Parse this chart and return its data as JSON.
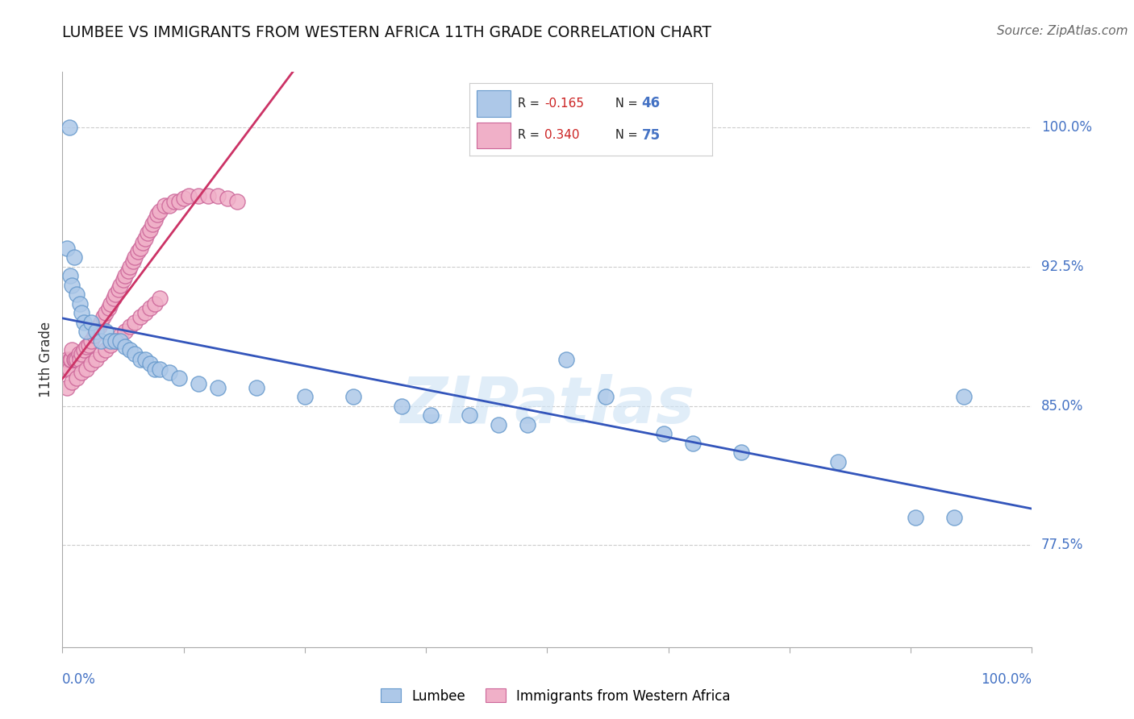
{
  "title": "LUMBEE VS IMMIGRANTS FROM WESTERN AFRICA 11TH GRADE CORRELATION CHART",
  "source": "Source: ZipAtlas.com",
  "ylabel": "11th Grade",
  "watermark": "ZIPatlas",
  "lumbee_label": "Lumbee",
  "africa_label": "Immigrants from Western Africa",
  "lumbee_r_text": "R = ",
  "lumbee_r_val": "-0.165",
  "lumbee_n_text": "N = ",
  "lumbee_n_val": "46",
  "africa_r_text": "R = ",
  "africa_r_val": "0.340",
  "africa_n_text": "N = ",
  "africa_n_val": "75",
  "xlim": [
    0.0,
    1.0
  ],
  "ylim": [
    0.72,
    1.03
  ],
  "yticks": [
    0.775,
    0.85,
    0.925,
    1.0
  ],
  "ytick_labels": [
    "77.5%",
    "85.0%",
    "92.5%",
    "100.0%"
  ],
  "lumbee_color": "#adc8e8",
  "lumbee_edge": "#6699cc",
  "africa_color": "#f0b0c8",
  "africa_edge": "#cc6699",
  "blue_line_color": "#3355bb",
  "pink_line_color": "#cc3366",
  "grid_color": "#cccccc",
  "axis_color": "#aaaaaa",
  "title_color": "#111111",
  "source_color": "#666666",
  "right_label_color": "#4472c4",
  "lumbee_x": [
    0.005,
    0.008,
    0.01,
    0.012,
    0.015,
    0.018,
    0.02,
    0.022,
    0.025,
    0.03,
    0.035,
    0.04,
    0.045,
    0.05,
    0.055,
    0.06,
    0.065,
    0.07,
    0.075,
    0.08,
    0.085,
    0.09,
    0.095,
    0.1,
    0.11,
    0.12,
    0.14,
    0.16,
    0.2,
    0.25,
    0.3,
    0.35,
    0.38,
    0.42,
    0.45,
    0.48,
    0.52,
    0.56,
    0.62,
    0.65,
    0.7,
    0.8,
    0.88,
    0.92,
    0.007,
    0.93
  ],
  "lumbee_y": [
    0.935,
    0.92,
    0.915,
    0.93,
    0.91,
    0.905,
    0.9,
    0.895,
    0.89,
    0.895,
    0.89,
    0.885,
    0.89,
    0.885,
    0.885,
    0.885,
    0.882,
    0.88,
    0.878,
    0.875,
    0.875,
    0.873,
    0.87,
    0.87,
    0.868,
    0.865,
    0.862,
    0.86,
    0.86,
    0.855,
    0.855,
    0.85,
    0.845,
    0.845,
    0.84,
    0.84,
    0.875,
    0.855,
    0.835,
    0.83,
    0.825,
    0.82,
    0.79,
    0.79,
    1.0,
    0.855
  ],
  "africa_x": [
    0.003,
    0.005,
    0.007,
    0.008,
    0.009,
    0.01,
    0.012,
    0.013,
    0.015,
    0.017,
    0.018,
    0.02,
    0.022,
    0.025,
    0.027,
    0.03,
    0.033,
    0.035,
    0.038,
    0.04,
    0.042,
    0.045,
    0.048,
    0.05,
    0.053,
    0.055,
    0.058,
    0.06,
    0.063,
    0.065,
    0.068,
    0.07,
    0.073,
    0.075,
    0.078,
    0.08,
    0.083,
    0.085,
    0.088,
    0.09,
    0.093,
    0.095,
    0.098,
    0.1,
    0.105,
    0.11,
    0.115,
    0.12,
    0.125,
    0.13,
    0.14,
    0.15,
    0.16,
    0.17,
    0.18,
    0.005,
    0.01,
    0.015,
    0.02,
    0.025,
    0.03,
    0.035,
    0.04,
    0.045,
    0.05,
    0.055,
    0.06,
    0.065,
    0.07,
    0.075,
    0.08,
    0.085,
    0.09,
    0.095,
    0.1
  ],
  "africa_y": [
    0.87,
    0.875,
    0.87,
    0.875,
    0.875,
    0.88,
    0.875,
    0.875,
    0.875,
    0.878,
    0.875,
    0.878,
    0.88,
    0.882,
    0.883,
    0.885,
    0.888,
    0.89,
    0.893,
    0.895,
    0.898,
    0.9,
    0.903,
    0.905,
    0.908,
    0.91,
    0.913,
    0.915,
    0.918,
    0.92,
    0.923,
    0.925,
    0.928,
    0.93,
    0.933,
    0.935,
    0.938,
    0.94,
    0.943,
    0.945,
    0.948,
    0.95,
    0.953,
    0.955,
    0.958,
    0.958,
    0.96,
    0.96,
    0.962,
    0.963,
    0.963,
    0.963,
    0.963,
    0.962,
    0.96,
    0.86,
    0.863,
    0.865,
    0.868,
    0.87,
    0.873,
    0.875,
    0.878,
    0.88,
    0.883,
    0.885,
    0.888,
    0.89,
    0.893,
    0.895,
    0.898,
    0.9,
    0.903,
    0.905,
    0.908
  ]
}
